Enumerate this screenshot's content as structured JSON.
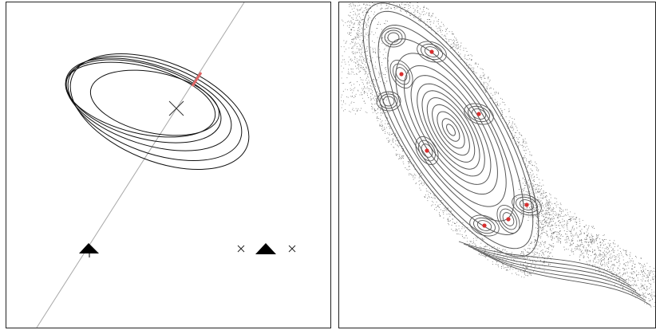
{
  "figure": {
    "left_panel": {
      "description_hidden": "",
      "colors": {
        "orbit": "#111111",
        "section_line": "#a8a8a8",
        "highlight": "#e06666",
        "marker": "#000000"
      },
      "markers": [
        "fixed-point-cross",
        "triangle-left",
        "cross-right-a",
        "triangle-right",
        "cross-right-b"
      ]
    },
    "right_panel": {
      "colors": {
        "curves": "#555555",
        "scatter": "#777777",
        "periodic_points": "#d83030"
      }
    }
  }
}
